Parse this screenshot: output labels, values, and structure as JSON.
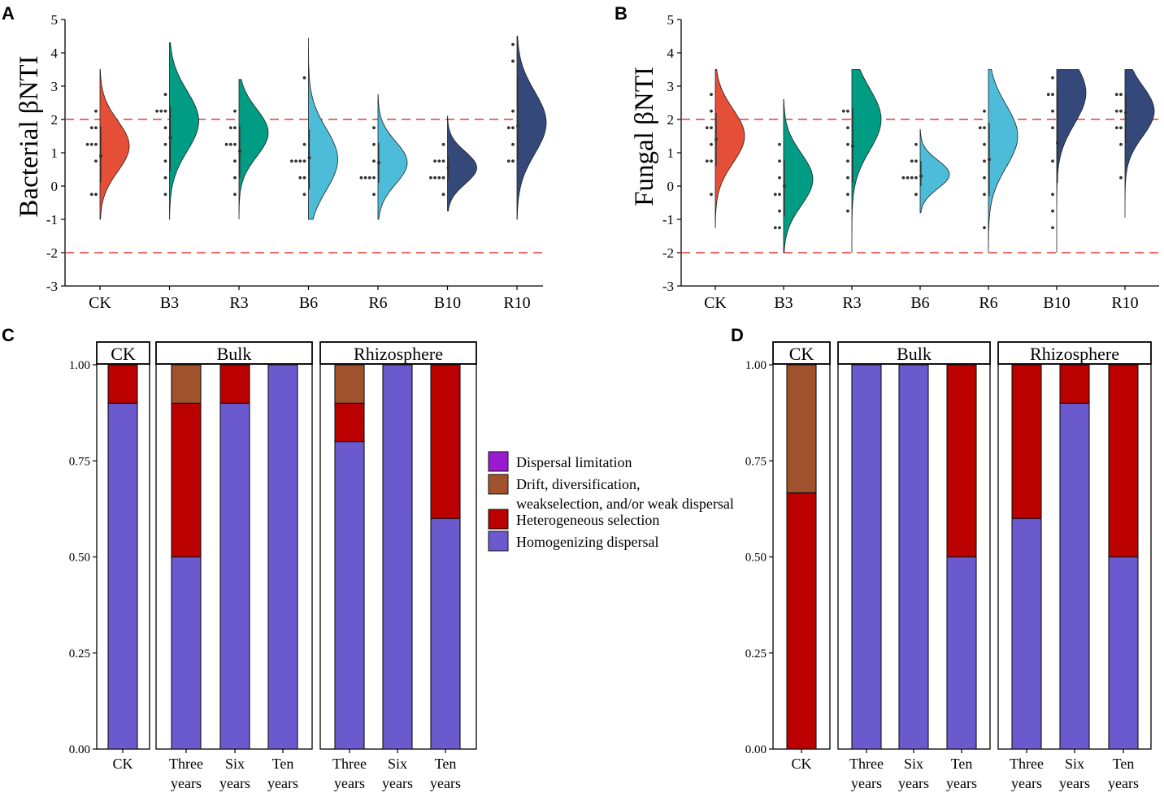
{
  "figure": {
    "panel_letters": [
      "A",
      "B",
      "C",
      "D"
    ]
  },
  "colors": {
    "CK": "#e54e37",
    "B3": "#009c83",
    "R3": "#009c83",
    "B6": "#4cbcd9",
    "R6": "#4cbcd9",
    "B10": "#34497a",
    "R10": "#34497a",
    "dispersal_limitation": "#9a1ad0",
    "drift": "#a0522d",
    "heterogeneous_selection": "#bb0000",
    "homogenizing_dispersal": "#6a5acd",
    "threshold_line": "#ea3c30"
  },
  "chart_data": [
    {
      "panel": "A",
      "type": "raincloud",
      "ylabel": "Bacterial βNTI",
      "xlabel": "",
      "ylim": [
        -3,
        5
      ],
      "yticks": [
        "-3",
        "-2",
        "-1",
        "0",
        "1",
        "2",
        "3",
        "4",
        "5"
      ],
      "ytick_values": [
        -3,
        -2,
        -1,
        0,
        1,
        2,
        3,
        4,
        5
      ],
      "threshold_lines": [
        2,
        -2
      ],
      "categories": [
        "CK",
        "B3",
        "R3",
        "B6",
        "R6",
        "B10",
        "R10"
      ],
      "series": [
        {
          "name": "CK",
          "min": -1.0,
          "max": 3.5,
          "median": 0.9,
          "q1": 0.1,
          "q3": 1.8,
          "mode": 1.2,
          "points": [
            2.25,
            1.75,
            1.75,
            1.25,
            1.25,
            1.25,
            0.75,
            -0.25,
            -0.25
          ]
        },
        {
          "name": "B3",
          "min": -1.0,
          "max": 4.3,
          "median": 1.45,
          "q1": 0.45,
          "q3": 2.4,
          "mode": 1.95,
          "points": [
            2.75,
            2.25,
            2.25,
            2.25,
            1.75,
            1.25,
            0.75,
            0.25,
            -0.25
          ]
        },
        {
          "name": "R3",
          "min": -1.0,
          "max": 3.2,
          "median": 1.05,
          "q1": 0.25,
          "q3": 1.8,
          "mode": 1.6,
          "points": [
            2.25,
            1.75,
            1.75,
            1.25,
            1.25,
            1.25,
            0.75,
            0.25,
            -0.25
          ]
        },
        {
          "name": "B6",
          "min": -1.0,
          "max": 4.45,
          "median": 0.85,
          "q1": -0.1,
          "q3": 1.7,
          "mode": 0.8,
          "points": [
            3.25,
            1.25,
            0.75,
            0.75,
            0.75,
            0.75,
            0.25,
            0.25,
            -0.25
          ]
        },
        {
          "name": "R6",
          "min": -1.0,
          "max": 2.75,
          "median": 0.7,
          "q1": 0.1,
          "q3": 1.3,
          "mode": 0.7,
          "points": [
            1.75,
            1.25,
            0.75,
            0.25,
            0.25,
            0.25,
            0.25,
            -0.25
          ]
        },
        {
          "name": "B10",
          "min": -0.75,
          "max": 2.1,
          "median": 0.55,
          "q1": 0.2,
          "q3": 0.9,
          "mode": 0.55,
          "points": [
            1.25,
            0.75,
            0.75,
            0.75,
            0.25,
            0.25,
            0.25,
            0.25,
            -0.25
          ]
        },
        {
          "name": "R10",
          "min": -1.0,
          "max": 4.5,
          "median": 1.8,
          "q1": 0.8,
          "q3": 3.3,
          "mode": 1.9,
          "points": [
            4.25,
            3.75,
            2.25,
            1.75,
            1.75,
            1.25,
            0.75,
            0.75
          ]
        }
      ]
    },
    {
      "panel": "B",
      "type": "raincloud",
      "ylabel": "Fungal βNTI",
      "xlabel": "",
      "ylim": [
        -3,
        5
      ],
      "yticks": [
        "-3",
        "-2",
        "-1",
        "0",
        "1",
        "2",
        "3",
        "4",
        "5"
      ],
      "ytick_values": [
        -3,
        -2,
        -1,
        0,
        1,
        2,
        3,
        4,
        5
      ],
      "threshold_lines": [
        2,
        -2
      ],
      "categories": [
        "CK",
        "B3",
        "R3",
        "B6",
        "R6",
        "B10",
        "R10"
      ],
      "series": [
        {
          "name": "CK",
          "min": -1.25,
          "max": 3.5,
          "median": 1.4,
          "q1": 0.6,
          "q3": 2.2,
          "mode": 1.5,
          "points": [
            2.75,
            2.25,
            1.75,
            1.75,
            1.25,
            0.75,
            0.75,
            -0.25
          ]
        },
        {
          "name": "B3",
          "min": -2.0,
          "max": 2.6,
          "median": 0.0,
          "q1": -0.9,
          "q3": 0.8,
          "mode": 0.2,
          "points": [
            1.25,
            0.75,
            0.25,
            -0.25,
            -0.25,
            -0.75,
            -1.25,
            -1.25
          ]
        },
        {
          "name": "R3",
          "min": -2.0,
          "max": 3.5,
          "median": 1.2,
          "q1": 0.1,
          "q3": 2.35,
          "mode": 2.0,
          "points": [
            2.25,
            2.25,
            1.75,
            1.25,
            0.75,
            0.25,
            -0.25,
            -0.75
          ]
        },
        {
          "name": "B6",
          "min": -0.8,
          "max": 1.7,
          "median": 0.3,
          "q1": 0.0,
          "q3": 0.75,
          "mode": 0.35,
          "points": [
            1.25,
            0.75,
            0.75,
            0.25,
            0.25,
            0.25,
            0.25,
            -0.25
          ]
        },
        {
          "name": "R6",
          "min": -2.0,
          "max": 3.5,
          "median": 0.8,
          "q1": -0.3,
          "q3": 1.9,
          "mode": 1.5,
          "points": [
            2.25,
            1.75,
            1.75,
            1.25,
            0.75,
            0.25,
            -0.25,
            -1.25
          ]
        },
        {
          "name": "B10",
          "min": -2.0,
          "max": 3.5,
          "median": 1.3,
          "q1": 0.1,
          "q3": 2.9,
          "mode": 2.8,
          "points": [
            3.25,
            2.75,
            2.75,
            2.25,
            1.75,
            0.75,
            -0.25,
            -0.75,
            -1.25
          ]
        },
        {
          "name": "R10",
          "min": -0.95,
          "max": 3.5,
          "median": 2.2,
          "q1": 1.3,
          "q3": 2.8,
          "mode": 2.25,
          "points": [
            2.75,
            2.75,
            2.25,
            2.25,
            1.75,
            1.75,
            1.25,
            0.25
          ]
        }
      ]
    },
    {
      "panel": "C",
      "type": "bar",
      "stacked": true,
      "ylim": [
        0,
        1
      ],
      "yticks": [
        "0.00",
        "0.25",
        "0.50",
        "0.75",
        "1.00"
      ],
      "ytick_values": [
        0,
        0.25,
        0.5,
        0.75,
        1
      ],
      "facets": [
        {
          "label": "CK",
          "categories": [
            [
              "CK"
            ]
          ]
        },
        {
          "label": "Bulk",
          "categories": [
            [
              "Three",
              "years"
            ],
            [
              "Six",
              "years"
            ],
            [
              "Ten",
              "years"
            ]
          ]
        },
        {
          "label": "Rhizosphere",
          "categories": [
            [
              "Three",
              "years"
            ],
            [
              "Six",
              "years"
            ],
            [
              "Ten",
              "years"
            ]
          ]
        }
      ],
      "series": [
        {
          "name": "Homogenizing dispersal",
          "values": [
            0.9,
            0.5,
            0.9,
            1.0,
            0.8,
            1.0,
            0.6
          ]
        },
        {
          "name": "Heterogeneous selection",
          "values": [
            0.1,
            0.4,
            0.1,
            0.0,
            0.1,
            0.0,
            0.4
          ]
        },
        {
          "name": "Drift, diversification, weakselection, and/or weak dispersal",
          "values": [
            0.0,
            0.1,
            0.0,
            0.0,
            0.1,
            0.0,
            0.0
          ]
        },
        {
          "name": "Dispersal limitation",
          "values": [
            0.0,
            0.0,
            0.0,
            0.0,
            0.0,
            0.0,
            0.0
          ]
        }
      ]
    },
    {
      "panel": "D",
      "type": "bar",
      "stacked": true,
      "ylim": [
        0,
        1
      ],
      "yticks": [
        "0.00",
        "0.25",
        "0.50",
        "0.75",
        "1.00"
      ],
      "ytick_values": [
        0,
        0.25,
        0.5,
        0.75,
        1
      ],
      "facets": [
        {
          "label": "CK",
          "categories": [
            [
              "CK"
            ]
          ]
        },
        {
          "label": "Bulk",
          "categories": [
            [
              "Three",
              "years"
            ],
            [
              "Six",
              "years"
            ],
            [
              "Ten",
              "years"
            ]
          ]
        },
        {
          "label": "Rhizosphere",
          "categories": [
            [
              "Three",
              "years"
            ],
            [
              "Six",
              "years"
            ],
            [
              "Ten",
              "years"
            ]
          ]
        }
      ],
      "series": [
        {
          "name": "Homogenizing dispersal",
          "values": [
            0.0,
            1.0,
            1.0,
            0.5,
            0.6,
            0.9,
            0.5
          ]
        },
        {
          "name": "Heterogeneous selection",
          "values": [
            0.6667,
            0.0,
            0.0,
            0.5,
            0.4,
            0.1,
            0.5
          ]
        },
        {
          "name": "Drift, diversification, weakselection, and/or weak dispersal",
          "values": [
            0.3333,
            0.0,
            0.0,
            0.0,
            0.0,
            0.0,
            0.0
          ]
        },
        {
          "name": "Dispersal limitation",
          "values": [
            0.0,
            0.0,
            0.0,
            0.0,
            0.0,
            0.0,
            0.0
          ]
        }
      ]
    }
  ],
  "legend": {
    "items": [
      {
        "key": "dispersal_limitation",
        "lines": [
          "Dispersal limitation"
        ]
      },
      {
        "key": "drift",
        "lines": [
          "Drift, diversification,",
          "weakselection, and/or weak dispersal"
        ]
      },
      {
        "key": "heterogeneous_selection",
        "lines": [
          "Heterogeneous selection"
        ]
      },
      {
        "key": "homogenizing_dispersal",
        "lines": [
          "Homogenizing dispersal"
        ]
      }
    ]
  }
}
